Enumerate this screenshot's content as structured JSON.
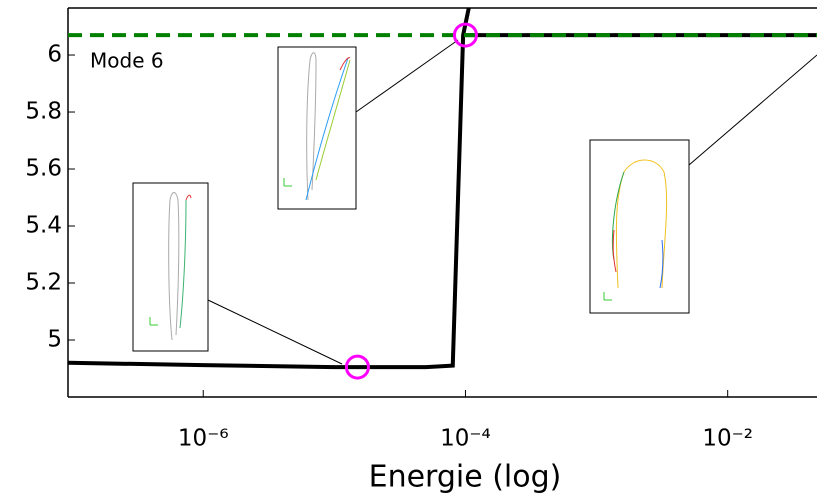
{
  "chart_data": {
    "type": "line",
    "x_label": "Energie (log)",
    "annotation": "Mode 6",
    "log_x": true,
    "xlim": [
      9.3e-08,
      0.048
    ],
    "ylim": [
      4.8,
      6.165
    ],
    "xticks": [
      {
        "value": 1e-06,
        "label": "10⁻⁶"
      },
      {
        "value": 0.0001,
        "label": "10⁻⁴"
      },
      {
        "value": 0.01,
        "label": "10⁻²"
      }
    ],
    "yticks": [
      5,
      5.2,
      5.4,
      5.6,
      5.8,
      6
    ],
    "series": [
      {
        "color": "#000000",
        "dash": false,
        "x": [
          9.3e-08,
          1e-06,
          1e-05,
          5e-05,
          8e-05,
          9.6e-05,
          0.000106
        ],
        "values": [
          4.92,
          4.912,
          4.905,
          4.905,
          4.91,
          6.07,
          6.165
        ]
      },
      {
        "color": "#000000",
        "dash": false,
        "x": [
          0.0001,
          0.048
        ],
        "values": [
          6.07,
          6.07
        ]
      },
      {
        "color": "#008000",
        "dash": true,
        "x": [
          9.3e-08,
          0.048
        ],
        "values": [
          6.07,
          6.07
        ]
      }
    ],
    "markers": {
      "color": "#ff00ff",
      "x": [
        1.5e-05,
        0.0001
      ],
      "values": [
        4.905,
        6.07
      ]
    }
  }
}
